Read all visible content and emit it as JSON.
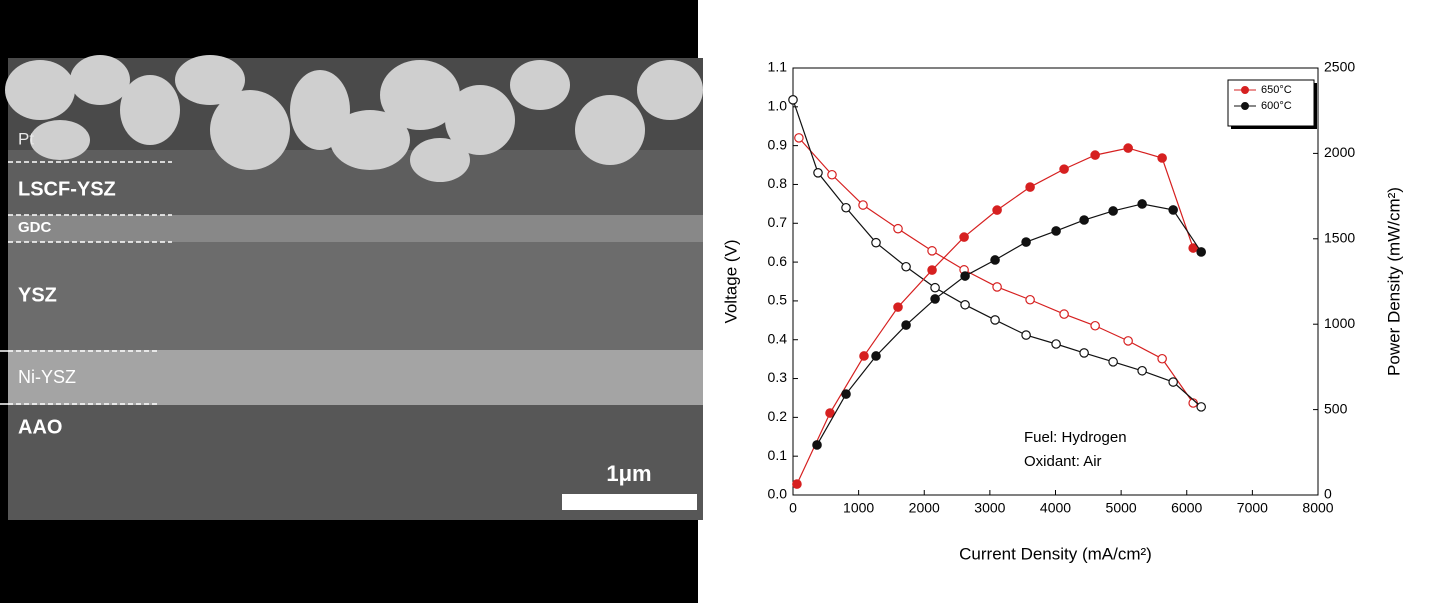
{
  "figure": {
    "layers": [
      "Pt",
      "LSCF-YSZ",
      "GDC",
      "YSZ",
      "Ni-YSZ",
      "AAO"
    ],
    "scale_bar": "1μm"
  },
  "chart_data": {
    "type": "line",
    "xlabel": "Current Density (mA/cm²)",
    "ylabel": "Voltage (V)",
    "y2label": "Power Density (mW/cm²)",
    "annotations": [
      "Fuel: Hydrogen",
      "Oxidant: Air"
    ],
    "xlim": [
      0,
      8000
    ],
    "xticks": [
      0,
      1000,
      2000,
      3000,
      4000,
      5000,
      6000,
      7000,
      8000
    ],
    "ylim": [
      0,
      1.1
    ],
    "yticks": [
      {
        "value": 0,
        "label": "0.0"
      },
      0.1,
      0.2,
      0.3,
      0.4,
      0.5,
      0.6,
      0.7,
      0.8,
      0.9,
      {
        "value": 1,
        "label": "1.0"
      },
      1.1
    ],
    "y2lim": [
      0,
      2500
    ],
    "y2ticks": [
      0,
      500,
      1000,
      1500,
      2000,
      2500
    ],
    "legend": "upper right",
    "grid": false,
    "series": [
      {
        "color": "#d62020",
        "marker": "open",
        "axis": "y",
        "x": [
          90,
          594,
          1067,
          1600,
          2119,
          2607,
          3110,
          3613,
          4131,
          4604,
          5107,
          5625,
          6098
        ],
        "values": [
          0.92,
          0.825,
          0.747,
          0.686,
          0.629,
          0.58,
          0.536,
          0.503,
          0.466,
          0.436,
          0.397,
          0.351,
          0.237
        ]
      },
      {
        "color": "#111111",
        "marker": "open",
        "axis": "y",
        "x": [
          0,
          381,
          808,
          1265,
          1723,
          2165,
          2622,
          3079,
          3552,
          4009,
          4436,
          4878,
          5320,
          5793,
          6220
        ],
        "values": [
          1.018,
          0.83,
          0.74,
          0.65,
          0.588,
          0.534,
          0.49,
          0.451,
          0.412,
          0.389,
          0.366,
          0.343,
          0.32,
          0.291,
          0.227
        ]
      },
      {
        "name": "650°C",
        "color": "#d62020",
        "marker": "filled",
        "axis": "y2",
        "x": [
          60,
          564,
          1082,
          1600,
          2119,
          2607,
          3110,
          3613,
          4131,
          4604,
          5107,
          5625,
          6098
        ],
        "values": [
          64,
          480,
          814,
          1100,
          1317,
          1510,
          1668,
          1803,
          1908,
          1990,
          2031,
          1973,
          1446
        ]
      },
      {
        "name": "600°C",
        "color": "#111111",
        "marker": "filled",
        "axis": "y2",
        "x": [
          366,
          808,
          1265,
          1723,
          2165,
          2622,
          3079,
          3552,
          4009,
          4436,
          4878,
          5320,
          5793,
          6220
        ],
        "values": [
          293,
          591,
          814,
          995,
          1148,
          1282,
          1376,
          1481,
          1546,
          1610,
          1663,
          1704,
          1669,
          1423
        ]
      }
    ]
  }
}
